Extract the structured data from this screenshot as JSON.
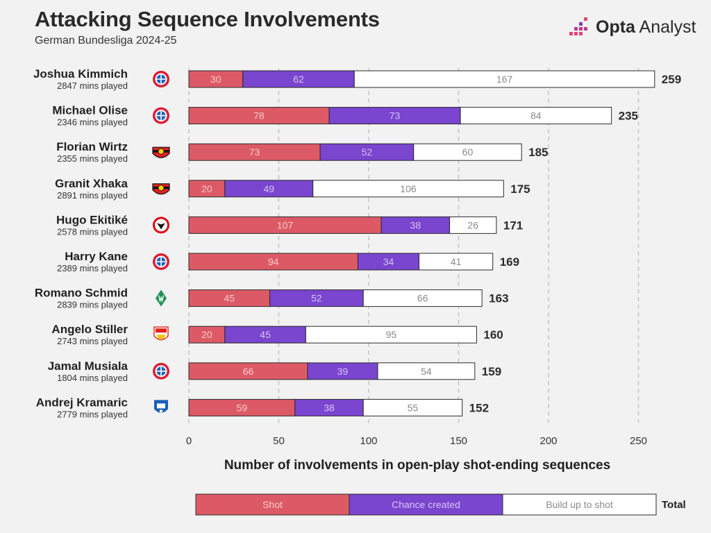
{
  "title": "Attacking Sequence Involvements",
  "subtitle": "German Bundesliga 2024-25",
  "brand": {
    "name_bold": "Opta",
    "name_regular": " Analyst",
    "icon": "opta-analyst-logo-icon"
  },
  "colors": {
    "shot": "#dc5a66",
    "chance_created": "#7a45cf",
    "build_up": "#ffffff",
    "bar_stroke": "#2a2a2a",
    "label_on_color": "#f7c9ce",
    "label_on_purple": "#d8c6f4",
    "label_on_white": "#8a8a8a"
  },
  "chart_data": {
    "type": "bar",
    "orientation": "horizontal",
    "stacked": true,
    "xlabel": "Number of involvements in open-play shot-ending sequences",
    "xlim": [
      0,
      260
    ],
    "xticks": [
      0,
      50,
      100,
      150,
      200,
      250
    ],
    "grid": "vertical-dashed",
    "legend_position": "bottom",
    "players": [
      {
        "name": "Joshua Kimmich",
        "mins": "2847 mins played",
        "club": "bayern-munich",
        "shot": 30,
        "chance_created": 62,
        "build_up": 167,
        "total": 259
      },
      {
        "name": "Michael Olise",
        "mins": "2346 mins played",
        "club": "bayern-munich",
        "shot": 78,
        "chance_created": 73,
        "build_up": 84,
        "total": 235
      },
      {
        "name": "Florian Wirtz",
        "mins": "2355 mins played",
        "club": "bayer-leverkusen",
        "shot": 73,
        "chance_created": 52,
        "build_up": 60,
        "total": 185
      },
      {
        "name": "Granit Xhaka",
        "mins": "2891 mins played",
        "club": "bayer-leverkusen",
        "shot": 20,
        "chance_created": 49,
        "build_up": 106,
        "total": 175
      },
      {
        "name": "Hugo Ekitiké",
        "mins": "2578 mins played",
        "club": "eintracht-frankfurt",
        "shot": 107,
        "chance_created": 38,
        "build_up": 26,
        "total": 171
      },
      {
        "name": "Harry Kane",
        "mins": "2389 mins played",
        "club": "bayern-munich",
        "shot": 94,
        "chance_created": 34,
        "build_up": 41,
        "total": 169
      },
      {
        "name": "Romano Schmid",
        "mins": "2839 mins played",
        "club": "werder-bremen",
        "shot": 45,
        "chance_created": 52,
        "build_up": 66,
        "total": 163
      },
      {
        "name": "Angelo Stiller",
        "mins": "2743 mins played",
        "club": "vfb-stuttgart",
        "shot": 20,
        "chance_created": 45,
        "build_up": 95,
        "total": 160
      },
      {
        "name": "Jamal Musiala",
        "mins": "1804 mins played",
        "club": "bayern-munich",
        "shot": 66,
        "chance_created": 39,
        "build_up": 54,
        "total": 159
      },
      {
        "name": "Andrej Kramaric",
        "mins": "2779 mins played",
        "club": "tsg-hoffenheim",
        "shot": 59,
        "chance_created": 38,
        "build_up": 55,
        "total": 152
      }
    ],
    "legend": {
      "shot": "Shot",
      "chance_created": "Chance created",
      "build_up": "Build up to shot",
      "total": "Total"
    }
  }
}
